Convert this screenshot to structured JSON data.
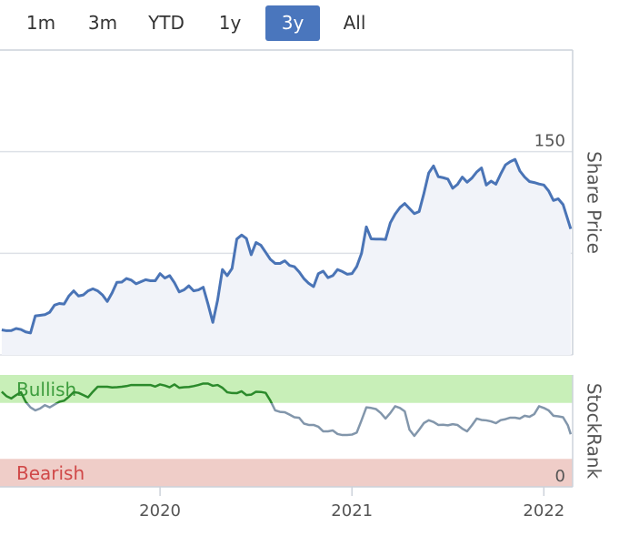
{
  "range_buttons": {
    "options": [
      "1m",
      "3m",
      "YTD",
      "1y",
      "3y",
      "All"
    ],
    "selected": 4
  },
  "chart_data": [
    {
      "type": "area",
      "axis_label": "Share Price",
      "color": "#4a74b6",
      "fill": "#f1f3f9",
      "xlim": [
        2019.166,
        2022.15
      ],
      "ylim": [
        50,
        200
      ],
      "yticks": [
        50,
        100,
        150
      ],
      "grid": true,
      "x": [
        2019.175,
        2019.2,
        2019.225,
        2019.25,
        2019.275,
        2019.3,
        2019.325,
        2019.35,
        2019.375,
        2019.4,
        2019.425,
        2019.45,
        2019.475,
        2019.5,
        2019.525,
        2019.55,
        2019.575,
        2019.6,
        2019.625,
        2019.65,
        2019.675,
        2019.7,
        2019.725,
        2019.75,
        2019.775,
        2019.8,
        2019.825,
        2019.85,
        2019.875,
        2019.9,
        2019.925,
        2019.95,
        2019.975,
        2020,
        2020.025,
        2020.05,
        2020.075,
        2020.1,
        2020.125,
        2020.15,
        2020.175,
        2020.2,
        2020.225,
        2020.25,
        2020.275,
        2020.3,
        2020.325,
        2020.35,
        2020.375,
        2020.4,
        2020.425,
        2020.45,
        2020.475,
        2020.5,
        2020.525,
        2020.55,
        2020.575,
        2020.6,
        2020.625,
        2020.65,
        2020.675,
        2020.7,
        2020.725,
        2020.75,
        2020.775,
        2020.8,
        2020.825,
        2020.85,
        2020.875,
        2020.9,
        2020.925,
        2020.95,
        2020.975,
        2021,
        2021.025,
        2021.05,
        2021.075,
        2021.1,
        2021.125,
        2021.15,
        2021.175,
        2021.2,
        2021.225,
        2021.25,
        2021.275,
        2021.3,
        2021.325,
        2021.35,
        2021.375,
        2021.4,
        2021.425,
        2021.45,
        2021.475,
        2021.5,
        2021.525,
        2021.55,
        2021.575,
        2021.6,
        2021.625,
        2021.65,
        2021.675,
        2021.7,
        2021.725,
        2021.75,
        2021.775,
        2021.8,
        2021.825,
        2021.85,
        2021.875,
        2021.9,
        2021.925,
        2021.95,
        2021.975,
        2022,
        2022.025,
        2022.05,
        2022.075,
        2022.1,
        2022.125,
        2022.14
      ],
      "values": [
        62.3,
        61.9,
        62,
        63,
        62.5,
        61.3,
        60.8,
        69.2,
        69.5,
        69.8,
        71,
        74.5,
        75.3,
        75,
        79,
        81.5,
        79,
        79.5,
        81.5,
        82.5,
        81.5,
        79.5,
        76.3,
        80.5,
        85.7,
        85.8,
        87.6,
        86.8,
        85,
        86,
        87,
        86.5,
        86.5,
        90,
        87.8,
        89,
        85.5,
        81,
        82,
        84,
        81.5,
        82,
        83.3,
        75,
        66,
        77,
        92,
        89,
        92.5,
        107,
        109,
        107.3,
        99.3,
        105.3,
        104,
        100.5,
        97,
        95,
        95,
        96.3,
        94,
        93.4,
        90.8,
        87.5,
        85.2,
        83.6,
        90,
        91.2,
        88,
        89,
        92,
        91,
        89.7,
        90,
        93.5,
        100,
        113,
        107.1,
        107,
        107,
        106.8,
        115,
        119.3,
        122.5,
        124.5,
        122,
        119.5,
        120.5,
        129.5,
        139.5,
        143,
        137.7,
        137.2,
        136.5,
        132,
        133.9,
        137.5,
        135,
        137,
        140,
        142,
        133.6,
        135.5,
        134,
        139,
        143.5,
        145.1,
        146.2,
        140.5,
        137.5,
        135.3,
        134.8,
        134.1,
        133.6,
        130.7,
        126,
        126.8,
        124,
        116.5,
        112
      ]
    },
    {
      "type": "line",
      "axis_label": "StockRank",
      "color": "#8296ab",
      "xlim": [
        2019.166,
        2022.15
      ],
      "ylim": [
        0,
        100
      ],
      "yticks": [
        0
      ],
      "xticks": [
        2020,
        2021,
        2022
      ],
      "bands": [
        {
          "label": "Bullish",
          "from": 75,
          "to": 100,
          "fill": "#c8efb8",
          "line_color": "#2b8a2b",
          "text_color": "#3c9c3c"
        },
        {
          "label": "Bearish",
          "from": 0,
          "to": 25,
          "fill": "#efcdc8",
          "text_color": "#d04848"
        }
      ],
      "x": [
        2019.175,
        2019.2,
        2019.225,
        2019.25,
        2019.275,
        2019.3,
        2019.325,
        2019.35,
        2019.375,
        2019.4,
        2019.425,
        2019.45,
        2019.475,
        2019.5,
        2019.525,
        2019.55,
        2019.575,
        2019.6,
        2019.625,
        2019.65,
        2019.675,
        2019.7,
        2019.725,
        2019.75,
        2019.775,
        2019.8,
        2019.825,
        2019.85,
        2019.875,
        2019.9,
        2019.925,
        2019.95,
        2019.975,
        2020,
        2020.025,
        2020.05,
        2020.075,
        2020.1,
        2020.125,
        2020.15,
        2020.175,
        2020.2,
        2020.225,
        2020.25,
        2020.275,
        2020.3,
        2020.325,
        2020.35,
        2020.375,
        2020.4,
        2020.425,
        2020.45,
        2020.475,
        2020.5,
        2020.525,
        2020.55,
        2020.575,
        2020.6,
        2020.625,
        2020.65,
        2020.675,
        2020.7,
        2020.725,
        2020.75,
        2020.775,
        2020.8,
        2020.825,
        2020.85,
        2020.875,
        2020.9,
        2020.925,
        2020.95,
        2020.975,
        2021,
        2021.025,
        2021.05,
        2021.075,
        2021.1,
        2021.125,
        2021.15,
        2021.175,
        2021.2,
        2021.225,
        2021.25,
        2021.275,
        2021.3,
        2021.325,
        2021.35,
        2021.375,
        2021.4,
        2021.425,
        2021.45,
        2021.475,
        2021.5,
        2021.525,
        2021.55,
        2021.575,
        2021.6,
        2021.625,
        2021.65,
        2021.675,
        2021.7,
        2021.725,
        2021.75,
        2021.775,
        2021.8,
        2021.825,
        2021.85,
        2021.875,
        2021.9,
        2021.925,
        2021.95,
        2021.975,
        2022,
        2022.025,
        2022.05,
        2022.075,
        2022.1,
        2022.125,
        2022.14
      ],
      "values": [
        85,
        81,
        79,
        82,
        84.6,
        76,
        71,
        68.3,
        70,
        73,
        71,
        73.5,
        76,
        77,
        80.5,
        84.6,
        84,
        82,
        80,
        85,
        89.4,
        89.4,
        89.4,
        88.8,
        89,
        89.4,
        90,
        91,
        91,
        91,
        91,
        91,
        89.6,
        91.5,
        90.5,
        89,
        91.5,
        88.5,
        89,
        89.2,
        90,
        91,
        92.3,
        92.3,
        90.3,
        91,
        88.5,
        84.5,
        83.8,
        83.7,
        85.4,
        82,
        82.4,
        85,
        84.8,
        84,
        77,
        68.3,
        67,
        66.7,
        64.5,
        62.2,
        61.7,
        56.5,
        55.3,
        55.3,
        53.7,
        49.6,
        49.6,
        50.4,
        47.2,
        46.3,
        46.3,
        46.7,
        48.5,
        59.5,
        71,
        70.5,
        69.5,
        66,
        61,
        66,
        72,
        70.5,
        67.5,
        51,
        45.5,
        51,
        57,
        59.5,
        58,
        55.3,
        55.5,
        55,
        56,
        55.3,
        52,
        49.6,
        55,
        61,
        59.8,
        59.4,
        58.5,
        56.9,
        59.6,
        60.5,
        61.8,
        61.8,
        61,
        63.5,
        62.6,
        65,
        72,
        70.5,
        68.3,
        63.5,
        63,
        62.2,
        55,
        47
      ]
    }
  ]
}
